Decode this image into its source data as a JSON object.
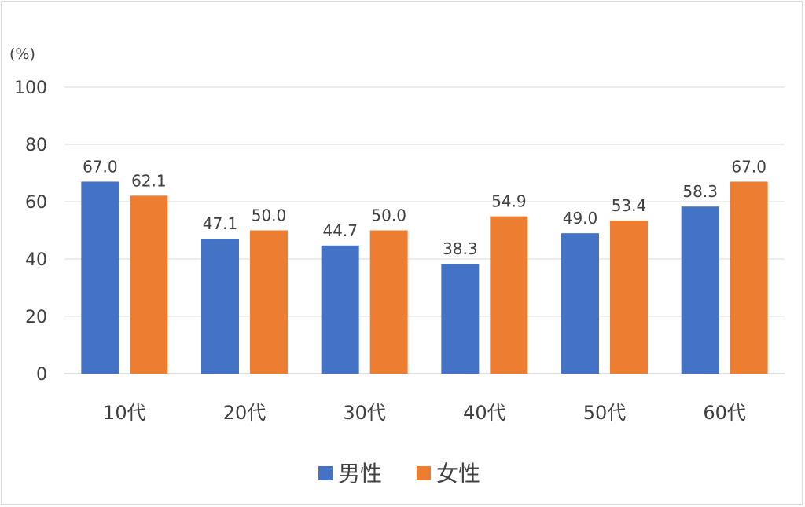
{
  "chart_data": {
    "type": "bar",
    "unit_label": "(%)",
    "categories": [
      "10代",
      "20代",
      "30代",
      "40代",
      "50代",
      "60代"
    ],
    "series": [
      {
        "name": "男性",
        "color": "#4472c4",
        "values": [
          67.0,
          47.1,
          44.7,
          38.3,
          49.0,
          58.3
        ]
      },
      {
        "name": "女性",
        "color": "#ed7d31",
        "values": [
          62.1,
          50.0,
          50.0,
          54.9,
          53.4,
          67.0
        ]
      }
    ],
    "ylim": [
      0,
      100
    ],
    "yticks": [
      0,
      20,
      40,
      60,
      80,
      100
    ],
    "grid": true,
    "legend_position": "bottom"
  }
}
